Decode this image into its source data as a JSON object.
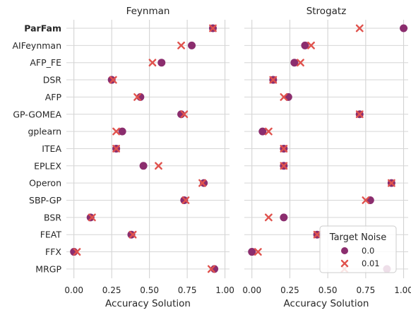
{
  "chart_data": {
    "type": "scatter",
    "categories": [
      "ParFam",
      "AIFeynman",
      "AFP_FE",
      "DSR",
      "AFP",
      "GP-GOMEA",
      "gplearn",
      "ITEA",
      "EPLEX",
      "Operon",
      "SBP-GP",
      "BSR",
      "FEAT",
      "FFX",
      "MRGP"
    ],
    "bold_category": "ParFam",
    "xlabel": "Accuracy Solution",
    "xlim": [
      -0.05,
      1.03
    ],
    "xticks": [
      0.0,
      0.25,
      0.5,
      0.75,
      1.0
    ],
    "xtick_labels": [
      "0.00",
      "0.25",
      "0.50",
      "0.75",
      "1.00"
    ],
    "grid": true,
    "legend": {
      "title": "Target Noise",
      "placement": "lower-right",
      "entries": [
        {
          "label": "0.0",
          "marker": "circle",
          "color": "#8b2d6e"
        },
        {
          "label": "0.01",
          "marker": "x",
          "color": "#e0524d"
        }
      ]
    },
    "panels": [
      {
        "title": "Feynman",
        "series": [
          {
            "name": "0.0",
            "marker": "circle",
            "color": "#8b2d6e",
            "values": [
              0.92,
              0.78,
              0.58,
              0.25,
              0.44,
              0.71,
              0.32,
              0.28,
              0.46,
              0.86,
              0.73,
              0.11,
              0.38,
              0.0,
              0.93
            ]
          },
          {
            "name": "0.01",
            "marker": "x",
            "color": "#e0524d",
            "values": [
              0.92,
              0.71,
              0.52,
              0.26,
              0.42,
              0.73,
              0.28,
              0.28,
              0.56,
              0.85,
              0.74,
              0.12,
              0.39,
              0.02,
              0.91
            ]
          }
        ]
      },
      {
        "title": "Strogatz",
        "series": [
          {
            "name": "0.0",
            "marker": "circle",
            "color": "#8b2d6e",
            "values": [
              1.0,
              0.35,
              0.28,
              0.14,
              0.24,
              0.71,
              0.07,
              0.21,
              0.21,
              0.92,
              0.78,
              0.21,
              0.43,
              0.0,
              0.89
            ]
          },
          {
            "name": "0.01",
            "marker": "x",
            "color": "#e0524d",
            "values": [
              0.71,
              0.39,
              0.32,
              0.14,
              0.21,
              0.71,
              0.11,
              0.21,
              0.21,
              0.92,
              0.75,
              0.11,
              0.43,
              0.04,
              0.61
            ]
          }
        ]
      }
    ]
  }
}
